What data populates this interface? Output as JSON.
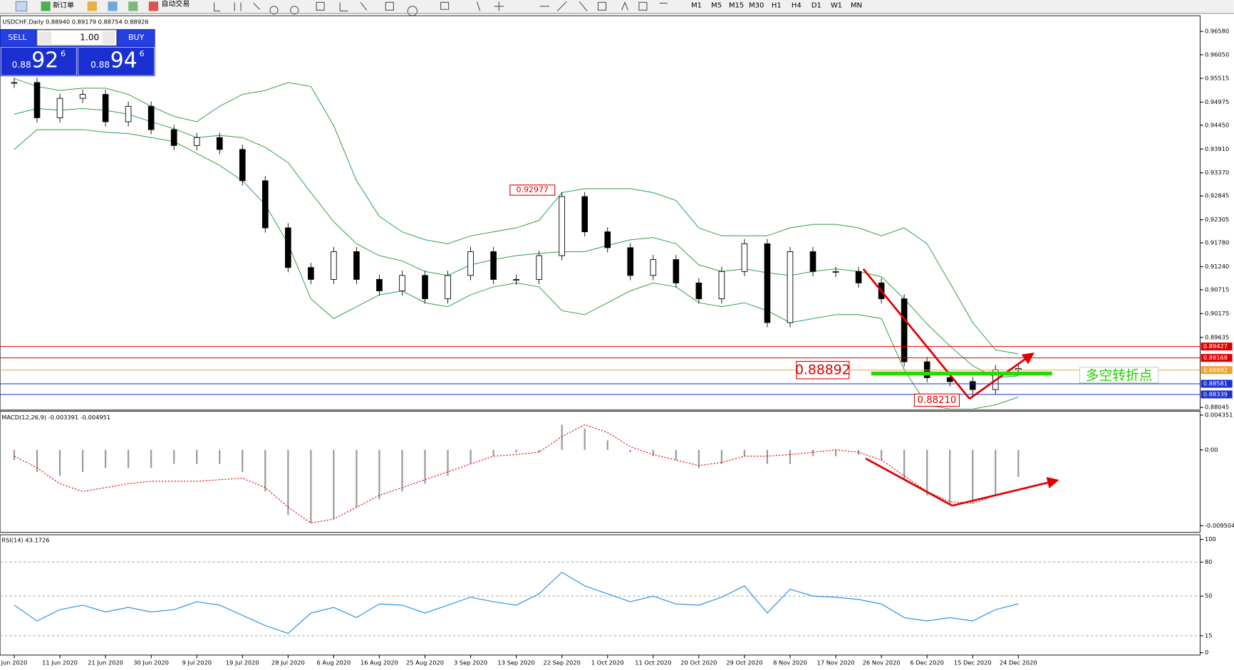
{
  "toolbar": {
    "new_order": "新订单",
    "auto_trading": "自动交易",
    "timeframes": [
      "M1",
      "M5",
      "M15",
      "M30",
      "H1",
      "H4",
      "D1",
      "W1",
      "MN"
    ]
  },
  "trade_panel": {
    "sell": "SELL",
    "buy": "BUY",
    "lot": "1.00",
    "sell_prefix": "0.88",
    "sell_big": "92",
    "sell_sup": "6",
    "buy_prefix": "0.88",
    "buy_big": "94",
    "buy_sup": "6"
  },
  "chart_data": [
    {
      "type": "candlestick",
      "title": "USDCHF,Daily  0.88940 0.89179 0.88754 0.88926",
      "categories": [
        "Jun 2020",
        null,
        "11 Jun 2020",
        null,
        "21 Jun 2020",
        null,
        "30 Jun 2020",
        null,
        "9 Jul 2020",
        null,
        "19 Jul 2020",
        null,
        "28 Jul 2020",
        null,
        "6 Aug 2020",
        null,
        "16 Aug 2020",
        null,
        "25 Aug 2020",
        null,
        "3 Sep 2020",
        null,
        "13 Sep 2020",
        null,
        "22 Sep 2020",
        null,
        "1 Oct 2020",
        null,
        "11 Oct 2020",
        null,
        "20 Oct 2020",
        null,
        "29 Oct 2020",
        null,
        "8 Nov 2020",
        null,
        "17 Nov 2020",
        null,
        "26 Nov 2020",
        null,
        "6 Dec 2020",
        null,
        "15 Dec 2020",
        null,
        "24 Dec 2020"
      ],
      "close": [
        0.9542,
        0.9462,
        0.9506,
        0.9515,
        0.9453,
        0.9488,
        0.9435,
        0.9399,
        0.9417,
        0.939,
        0.9319,
        0.9212,
        0.9122,
        0.9095,
        0.9158,
        0.9095,
        0.9069,
        0.9104,
        0.9051,
        0.9104,
        0.9158,
        0.9095,
        0.9095,
        0.9149,
        0.9283,
        0.9203,
        0.9167,
        0.9104,
        0.914,
        0.9087,
        0.9051,
        0.9113,
        0.9176,
        0.8997,
        0.9158,
        0.9113,
        0.9113,
        0.9087,
        0.9051,
        0.8908,
        0.8872,
        0.8863,
        0.8845,
        0.889,
        0.8893
      ],
      "bands": {
        "color": "#2e9e4a",
        "upper": [
          0.9551,
          0.9533,
          0.9524,
          0.9529,
          0.9529,
          0.9515,
          0.9488,
          0.9465,
          0.9453,
          0.9488,
          0.9515,
          0.9524,
          0.9542,
          0.9533,
          0.9444,
          0.9319,
          0.9238,
          0.9203,
          0.9185,
          0.9176,
          0.9194,
          0.9203,
          0.9212,
          0.9229,
          0.9292,
          0.9301,
          0.9301,
          0.9301,
          0.9292,
          0.9274,
          0.9212,
          0.9194,
          0.9194,
          0.9194,
          0.9212,
          0.922,
          0.922,
          0.9212,
          0.9194,
          0.9212,
          0.9176,
          0.9087,
          0.8997,
          0.8935,
          0.8926
        ],
        "middle": [
          0.947,
          0.9483,
          0.9479,
          0.9483,
          0.9479,
          0.947,
          0.9453,
          0.9437,
          0.9417,
          0.9422,
          0.9417,
          0.9395,
          0.936,
          0.9292,
          0.9226,
          0.9176,
          0.9149,
          0.9137,
          0.9113,
          0.9104,
          0.9128,
          0.914,
          0.9149,
          0.9154,
          0.9158,
          0.9158,
          0.9172,
          0.9185,
          0.919,
          0.9176,
          0.9128,
          0.9113,
          0.9119,
          0.911,
          0.9104,
          0.9113,
          0.9119,
          0.9113,
          0.9101,
          0.9051,
          0.8994,
          0.8944,
          0.8899,
          0.8872,
          0.8876
        ],
        "lower": [
          0.939,
          0.9435,
          0.9435,
          0.9435,
          0.9429,
          0.9426,
          0.9417,
          0.9408,
          0.9381,
          0.9354,
          0.9319,
          0.9265,
          0.9176,
          0.9051,
          0.9006,
          0.9033,
          0.906,
          0.9069,
          0.9042,
          0.9033,
          0.906,
          0.9078,
          0.9087,
          0.9078,
          0.9024,
          0.9015,
          0.9042,
          0.9069,
          0.9087,
          0.9078,
          0.9042,
          0.9033,
          0.9042,
          0.9024,
          0.8997,
          0.9006,
          0.9015,
          0.9015,
          0.9006,
          0.889,
          0.881,
          0.8801,
          0.8801,
          0.881,
          0.8828
        ]
      },
      "ylim": [
        0.8801,
        0.969
      ],
      "yticks": [
        {
          "value": 0.9658,
          "label": "0.96580"
        },
        {
          "value": 0.9605,
          "label": "0.96050"
        },
        {
          "value": 0.95515,
          "label": "0.95515"
        },
        {
          "value": 0.94975,
          "label": "0.94975"
        },
        {
          "value": 0.9445,
          "label": "0.94450"
        },
        {
          "value": 0.9391,
          "label": "0.93910"
        },
        {
          "value": 0.9337,
          "label": "0.93370"
        },
        {
          "value": 0.92845,
          "label": "0.92845"
        },
        {
          "value": 0.92305,
          "label": "0.92305"
        },
        {
          "value": 0.9178,
          "label": "0.91780"
        },
        {
          "value": 0.9124,
          "label": "0.91240"
        },
        {
          "value": 0.90715,
          "label": "0.90715"
        },
        {
          "value": 0.90175,
          "label": "0.90175"
        },
        {
          "value": 0.89635,
          "label": "0.89635"
        },
        {
          "value": 0.88045,
          "label": "0.88045"
        }
      ],
      "levels": [
        {
          "value": 0.89427,
          "label": "0.89427",
          "color": "#e00000"
        },
        {
          "value": 0.89168,
          "label": "0.89168",
          "color": "#e00000"
        },
        {
          "value": 0.88892,
          "label": "0.88892",
          "color": "#f0a030"
        },
        {
          "value": 0.88581,
          "label": "0.88581",
          "color": "#1a2fd0"
        },
        {
          "value": 0.88339,
          "label": "0.88339",
          "color": "#1a2fd0"
        }
      ],
      "annotations": [
        {
          "value": 0.92977,
          "label": "0.92977"
        },
        {
          "value": 0.88892,
          "label": "0.88892"
        },
        {
          "value": 0.8821,
          "label": "0.88210"
        }
      ],
      "note": "多空转折点"
    },
    {
      "type": "macd",
      "title": "MACD(12,26,9) -0.003391 -0.004951",
      "histogram": [
        -0.00128,
        -0.00276,
        -0.00325,
        -0.00276,
        -0.00227,
        -0.00227,
        -0.00227,
        -0.00177,
        -0.00177,
        -0.00177,
        -0.00276,
        -0.00522,
        -0.00817,
        -0.00916,
        -0.00867,
        -0.00719,
        -0.00621,
        -0.00522,
        -0.00424,
        -0.00325,
        -0.00177,
        -0.00079,
        -0.0003,
        -0.0003,
        0.00315,
        0.00266,
        0.00118,
        -0.0003,
        -0.00079,
        -0.00128,
        -0.00227,
        -0.00177,
        -0.00079,
        -0.00177,
        -0.00177,
        -0.00079,
        -0.00079,
        -0.00059,
        -0.00128,
        -0.00374,
        -0.00571,
        -0.0067,
        -0.0067,
        -0.00571,
        -0.003391
      ],
      "signal": [
        -0.00079,
        -0.00227,
        -0.00424,
        -0.00522,
        -0.00473,
        -0.00424,
        -0.00394,
        -0.00394,
        -0.00394,
        -0.00374,
        -0.00355,
        -0.00473,
        -0.00719,
        -0.00916,
        -0.00867,
        -0.00719,
        -0.00571,
        -0.00473,
        -0.00374,
        -0.00276,
        -0.00177,
        -0.00079,
        -0.00059,
        -0.0003,
        0.00167,
        0.00315,
        0.00217,
        0.00039,
        -0.00059,
        -0.00128,
        -0.00197,
        -0.00158,
        -0.00079,
        -0.00079,
        -0.00059,
        -0.0003,
        0,
        -0.0003,
        -0.00128,
        -0.00325,
        -0.00522,
        -0.0065,
        -0.0067,
        -0.00571,
        -0.004951
      ],
      "histogram_color": "#9a9a9a",
      "signal_color": "#e00000",
      "ylim": [
        -0.01034,
        0.00483
      ],
      "yticks": [
        0.004351,
        {
          "value": 0,
          "label": "0.00"
        },
        -0.009504
      ]
    },
    {
      "type": "rsi",
      "title": "RSI(14) 43.1726",
      "color": "#1e88e5",
      "values": [
        42,
        28,
        38,
        42,
        36,
        40,
        36,
        38,
        45,
        42,
        33,
        24,
        17,
        35,
        40,
        31,
        43,
        42,
        35,
        42,
        49,
        45,
        42,
        52,
        71,
        59,
        52,
        45,
        50,
        43,
        42,
        49,
        59,
        35,
        56,
        50,
        49,
        47,
        43,
        31,
        28,
        31,
        28,
        38,
        43.1726
      ],
      "ylim": [
        0,
        100
      ],
      "yticks": [
        100,
        80,
        50,
        15,
        0
      ],
      "grid": [
        80,
        50,
        15
      ]
    }
  ]
}
